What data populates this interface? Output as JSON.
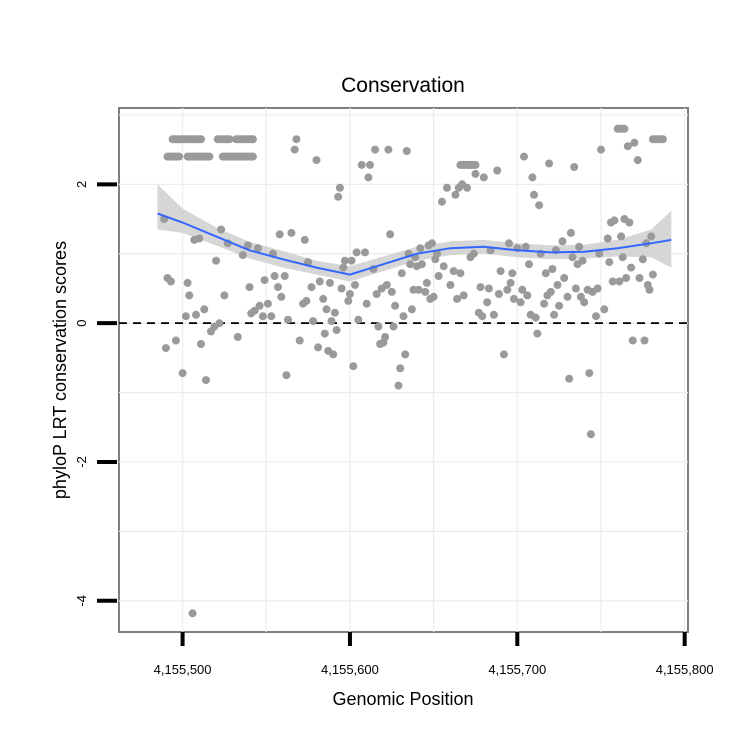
{
  "chart_data": {
    "type": "scatter",
    "title": "Conservation",
    "xlabel": "Genomic Position",
    "ylabel": "phyloP LRT conservation scores",
    "xlim": [
      4155462,
      4155802
    ],
    "ylim": [
      -4.45,
      3.1
    ],
    "x_ticks": [
      4155500,
      4155600,
      4155700,
      4155800
    ],
    "x_tick_labels": [
      "4,155,500",
      "4,155,600",
      "4,155,700",
      "4,155,800"
    ],
    "y_ticks": [
      -4,
      -2,
      0,
      2
    ],
    "y_tick_labels": [
      "-4",
      "-2",
      "0",
      "2"
    ],
    "grid": true,
    "reference_line": {
      "y": 0,
      "style": "dashed"
    },
    "colors": {
      "points": "#9a9a9a",
      "smooth": "#3366ff",
      "band": "#cfcfcf",
      "grid": "#ececec",
      "frame": "#7f7f7f"
    },
    "series": [
      {
        "name": "scores",
        "points": [
          [
            4155489,
            1.5
          ],
          [
            4155490,
            -0.36
          ],
          [
            4155491,
            0.65
          ],
          [
            4155493,
            0.6
          ],
          [
            4155496,
            -0.25
          ],
          [
            4155500,
            -0.72
          ],
          [
            4155502,
            0.1
          ],
          [
            4155503,
            0.58
          ],
          [
            4155504,
            0.4
          ],
          [
            4155506,
            -4.18
          ],
          [
            4155507,
            1.2
          ],
          [
            4155508,
            0.12
          ],
          [
            4155510,
            1.22
          ],
          [
            4155511,
            -0.3
          ],
          [
            4155513,
            0.2
          ],
          [
            4155514,
            -0.82
          ],
          [
            4155517,
            -0.12
          ],
          [
            4155519,
            -0.05
          ],
          [
            4155520,
            0.9
          ],
          [
            4155522,
            0.0
          ],
          [
            4155523,
            1.35
          ],
          [
            4155525,
            0.4
          ],
          [
            4155527,
            1.15
          ],
          [
            4155533,
            -0.2
          ],
          [
            4155536,
            0.98
          ],
          [
            4155539,
            1.12
          ],
          [
            4155540,
            0.52
          ],
          [
            4155541,
            0.14
          ],
          [
            4155543,
            0.18
          ],
          [
            4155545,
            1.08
          ],
          [
            4155546,
            0.25
          ],
          [
            4155548,
            0.1
          ],
          [
            4155549,
            0.62
          ],
          [
            4155551,
            0.28
          ],
          [
            4155553,
            0.1
          ],
          [
            4155554,
            1.0
          ],
          [
            4155555,
            0.68
          ],
          [
            4155557,
            0.52
          ],
          [
            4155558,
            1.28
          ],
          [
            4155559,
            0.38
          ],
          [
            4155561,
            0.68
          ],
          [
            4155562,
            -0.75
          ],
          [
            4155563,
            0.05
          ],
          [
            4155565,
            1.3
          ],
          [
            4155567,
            2.5
          ],
          [
            4155568,
            2.65
          ],
          [
            4155570,
            -0.25
          ],
          [
            4155572,
            0.28
          ],
          [
            4155573,
            1.2
          ],
          [
            4155574,
            0.32
          ],
          [
            4155575,
            0.88
          ],
          [
            4155577,
            0.52
          ],
          [
            4155578,
            0.03
          ],
          [
            4155580,
            2.35
          ],
          [
            4155581,
            -0.35
          ],
          [
            4155582,
            0.6
          ],
          [
            4155584,
            0.35
          ],
          [
            4155585,
            -0.15
          ],
          [
            4155586,
            0.2
          ],
          [
            4155587,
            -0.4
          ],
          [
            4155588,
            0.58
          ],
          [
            4155589,
            0.03
          ],
          [
            4155590,
            -0.45
          ],
          [
            4155591,
            0.15
          ],
          [
            4155592,
            -0.1
          ],
          [
            4155593,
            1.82
          ],
          [
            4155594,
            1.95
          ],
          [
            4155595,
            0.5
          ],
          [
            4155596,
            0.8
          ],
          [
            4155597,
            0.9
          ],
          [
            4155599,
            0.32
          ],
          [
            4155600,
            0.42
          ],
          [
            4155601,
            0.9
          ],
          [
            4155602,
            -0.62
          ],
          [
            4155603,
            0.55
          ],
          [
            4155604,
            1.02
          ],
          [
            4155605,
            0.05
          ],
          [
            4155607,
            2.28
          ],
          [
            4155609,
            1.02
          ],
          [
            4155610,
            0.28
          ],
          [
            4155611,
            2.1
          ],
          [
            4155612,
            2.28
          ],
          [
            4155614,
            0.78
          ],
          [
            4155615,
            2.5
          ],
          [
            4155616,
            0.42
          ],
          [
            4155617,
            -0.05
          ],
          [
            4155618,
            -0.3
          ],
          [
            4155619,
            0.5
          ],
          [
            4155620,
            -0.28
          ],
          [
            4155621,
            -0.2
          ],
          [
            4155622,
            0.55
          ],
          [
            4155623,
            2.5
          ],
          [
            4155624,
            1.28
          ],
          [
            4155625,
            0.45
          ],
          [
            4155626,
            -0.05
          ],
          [
            4155627,
            0.25
          ],
          [
            4155629,
            -0.9
          ],
          [
            4155630,
            -0.65
          ],
          [
            4155631,
            0.72
          ],
          [
            4155632,
            0.1
          ],
          [
            4155633,
            -0.45
          ],
          [
            4155634,
            2.48
          ],
          [
            4155635,
            1.0
          ],
          [
            4155636,
            0.85
          ],
          [
            4155637,
            0.2
          ],
          [
            4155638,
            0.48
          ],
          [
            4155639,
            0.95
          ],
          [
            4155640,
            0.82
          ],
          [
            4155641,
            0.48
          ],
          [
            4155642,
            1.08
          ],
          [
            4155643,
            0.85
          ],
          [
            4155645,
            0.45
          ],
          [
            4155646,
            0.58
          ],
          [
            4155647,
            1.12
          ],
          [
            4155648,
            0.35
          ],
          [
            4155649,
            1.15
          ],
          [
            4155650,
            0.38
          ],
          [
            4155651,
            0.92
          ],
          [
            4155652,
            1.0
          ],
          [
            4155653,
            0.68
          ],
          [
            4155655,
            1.75
          ],
          [
            4155656,
            0.82
          ],
          [
            4155658,
            1.95
          ],
          [
            4155660,
            0.55
          ],
          [
            4155662,
            0.75
          ],
          [
            4155663,
            1.85
          ],
          [
            4155664,
            0.35
          ],
          [
            4155665,
            1.95
          ],
          [
            4155666,
            0.72
          ],
          [
            4155667,
            2.0
          ],
          [
            4155668,
            0.4
          ],
          [
            4155670,
            1.95
          ],
          [
            4155672,
            0.95
          ],
          [
            4155674,
            1.0
          ],
          [
            4155675,
            2.15
          ],
          [
            4155677,
            0.15
          ],
          [
            4155678,
            0.52
          ],
          [
            4155679,
            0.1
          ],
          [
            4155680,
            2.1
          ],
          [
            4155682,
            0.3
          ],
          [
            4155683,
            0.5
          ],
          [
            4155684,
            1.05
          ],
          [
            4155686,
            0.12
          ],
          [
            4155688,
            2.2
          ],
          [
            4155689,
            0.42
          ],
          [
            4155690,
            0.75
          ],
          [
            4155692,
            -0.45
          ],
          [
            4155694,
            0.48
          ],
          [
            4155695,
            1.15
          ],
          [
            4155696,
            0.58
          ],
          [
            4155697,
            0.72
          ],
          [
            4155698,
            0.35
          ],
          [
            4155700,
            1.08
          ],
          [
            4155702,
            0.3
          ],
          [
            4155703,
            0.48
          ],
          [
            4155704,
            2.4
          ],
          [
            4155705,
            1.1
          ],
          [
            4155706,
            0.4
          ],
          [
            4155707,
            0.85
          ],
          [
            4155708,
            0.12
          ],
          [
            4155709,
            2.1
          ],
          [
            4155710,
            1.85
          ],
          [
            4155711,
            0.08
          ],
          [
            4155712,
            -0.15
          ],
          [
            4155713,
            1.7
          ],
          [
            4155714,
            1.0
          ],
          [
            4155716,
            0.28
          ],
          [
            4155717,
            0.72
          ],
          [
            4155718,
            0.4
          ],
          [
            4155719,
            2.3
          ],
          [
            4155720,
            0.45
          ],
          [
            4155721,
            0.78
          ],
          [
            4155722,
            0.12
          ],
          [
            4155723,
            1.05
          ],
          [
            4155724,
            0.55
          ],
          [
            4155725,
            0.25
          ],
          [
            4155727,
            1.18
          ],
          [
            4155728,
            0.65
          ],
          [
            4155730,
            0.38
          ],
          [
            4155731,
            -0.8
          ],
          [
            4155732,
            1.3
          ],
          [
            4155733,
            0.95
          ],
          [
            4155734,
            2.25
          ],
          [
            4155735,
            0.5
          ],
          [
            4155736,
            0.85
          ],
          [
            4155737,
            1.1
          ],
          [
            4155738,
            0.38
          ],
          [
            4155739,
            0.9
          ],
          [
            4155740,
            0.3
          ],
          [
            4155742,
            0.48
          ],
          [
            4155743,
            -0.72
          ],
          [
            4155744,
            -1.6
          ],
          [
            4155745,
            0.45
          ],
          [
            4155747,
            0.1
          ],
          [
            4155748,
            0.5
          ],
          [
            4155749,
            1.0
          ],
          [
            4155750,
            2.5
          ],
          [
            4155752,
            0.2
          ],
          [
            4155754,
            1.22
          ],
          [
            4155755,
            0.88
          ],
          [
            4155756,
            1.45
          ],
          [
            4155757,
            0.6
          ],
          [
            4155758,
            1.48
          ],
          [
            4155760,
            2.8
          ],
          [
            4155761,
            0.6
          ],
          [
            4155762,
            1.25
          ],
          [
            4155763,
            0.95
          ],
          [
            4155764,
            1.5
          ],
          [
            4155765,
            0.65
          ],
          [
            4155766,
            2.55
          ],
          [
            4155767,
            1.45
          ],
          [
            4155768,
            0.8
          ],
          [
            4155769,
            -0.25
          ],
          [
            4155770,
            2.6
          ],
          [
            4155772,
            2.35
          ],
          [
            4155773,
            0.65
          ],
          [
            4155775,
            0.92
          ],
          [
            4155776,
            -0.25
          ],
          [
            4155777,
            1.15
          ],
          [
            4155778,
            0.55
          ],
          [
            4155779,
            0.48
          ],
          [
            4155780,
            1.25
          ],
          [
            4155781,
            0.7
          ]
        ],
        "runs": [
          {
            "x_from": 4155494,
            "x_to": 4155511,
            "y": 2.65
          },
          {
            "x_from": 4155491,
            "x_to": 4155498,
            "y": 2.4
          },
          {
            "x_from": 4155503,
            "x_to": 4155516,
            "y": 2.4
          },
          {
            "x_from": 4155521,
            "x_to": 4155528,
            "y": 2.65
          },
          {
            "x_from": 4155532,
            "x_to": 4155542,
            "y": 2.65
          },
          {
            "x_from": 4155524,
            "x_to": 4155542,
            "y": 2.4
          },
          {
            "x_from": 4155761,
            "x_to": 4155764,
            "y": 2.8
          },
          {
            "x_from": 4155781,
            "x_to": 4155787,
            "y": 2.65
          },
          {
            "x_from": 4155666,
            "x_to": 4155675,
            "y": 2.28
          }
        ]
      }
    ],
    "smooth": {
      "x": [
        4155485,
        4155500,
        4155520,
        4155540,
        4155560,
        4155580,
        4155600,
        4155620,
        4155640,
        4155660,
        4155680,
        4155700,
        4155720,
        4155740,
        4155760,
        4155780,
        4155792
      ],
      "y": [
        1.58,
        1.45,
        1.25,
        1.05,
        0.92,
        0.8,
        0.7,
        0.85,
        1.0,
        1.08,
        1.1,
        1.05,
        1.02,
        1.03,
        1.08,
        1.15,
        1.2
      ],
      "lower": [
        1.35,
        1.3,
        1.12,
        0.93,
        0.8,
        0.7,
        0.6,
        0.75,
        0.9,
        0.98,
        1.0,
        0.95,
        0.92,
        0.93,
        0.96,
        0.95,
        0.8
      ],
      "upper": [
        2.0,
        1.65,
        1.38,
        1.17,
        1.04,
        0.9,
        0.82,
        0.96,
        1.1,
        1.18,
        1.2,
        1.15,
        1.12,
        1.13,
        1.2,
        1.35,
        1.62
      ]
    }
  }
}
